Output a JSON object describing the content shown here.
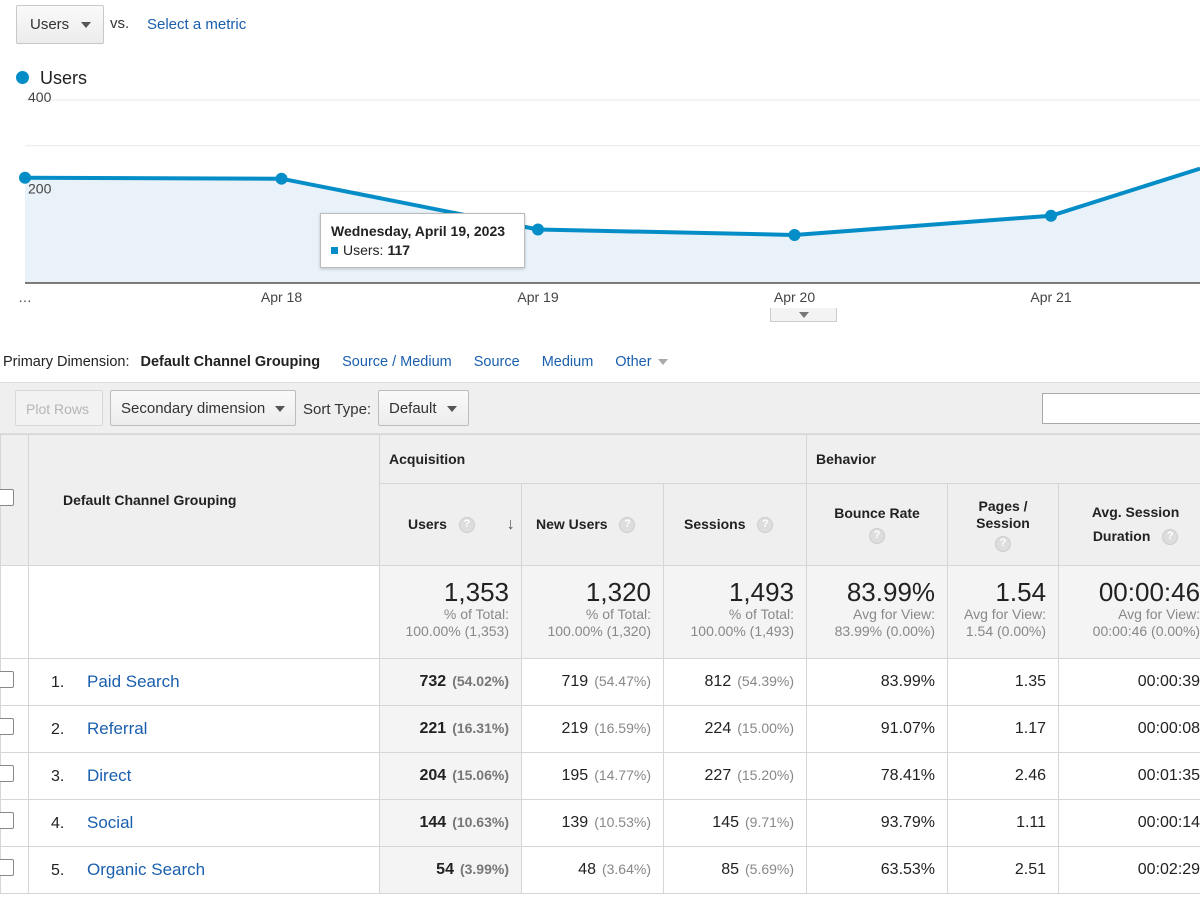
{
  "header": {
    "metric_select": "Users",
    "vs_label": "vs.",
    "select_metric_link": "Select a metric"
  },
  "chart": {
    "legend_label": "Users",
    "tooltip": {
      "date": "Wednesday, April 19, 2023",
      "label": "Users:",
      "value": "117"
    }
  },
  "chart_data": {
    "type": "area",
    "series": [
      {
        "name": "Users",
        "values": [
          230,
          228,
          117,
          105,
          147,
          250
        ]
      }
    ],
    "x": [
      "…",
      "Apr 18",
      "Apr 19",
      "Apr 20",
      "Apr 21",
      ""
    ],
    "x_tick_labels": [
      "…",
      "Apr 18",
      "Apr 19",
      "Apr 20",
      "Apr 21"
    ],
    "y_tick_labels": [
      "400",
      "200"
    ],
    "ylim": [
      0,
      400
    ],
    "grid": true,
    "colors": {
      "line": "#058dc7",
      "fill": "#e9f1f9",
      "grid": "#e8e8e8"
    }
  },
  "primary_dimension": {
    "label": "Primary Dimension:",
    "active": "Default Channel Grouping",
    "links": [
      "Source / Medium",
      "Source",
      "Medium"
    ],
    "other": "Other"
  },
  "toolbar": {
    "plot_rows": "Plot Rows",
    "secondary_dimension": "Secondary dimension",
    "sort_type_label": "Sort Type:",
    "sort_type_value": "Default"
  },
  "table": {
    "dimension_header": "Default Channel Grouping",
    "group_acquisition": "Acquisition",
    "group_behavior": "Behavior",
    "columns": {
      "users": "Users",
      "new_users": "New Users",
      "sessions": "Sessions",
      "bounce_rate": "Bounce Rate",
      "pages_session_1": "Pages /",
      "pages_session_2": "Session",
      "avg_session_1": "Avg. Session",
      "avg_session_2": "Duration"
    },
    "help_glyph": "?",
    "sort_glyph": "↓",
    "totals": {
      "users": {
        "value": "1,353",
        "line1": "% of Total:",
        "line2": "100.00% (1,353)"
      },
      "new_users": {
        "value": "1,320",
        "line1": "% of Total:",
        "line2": "100.00% (1,320)"
      },
      "sessions": {
        "value": "1,493",
        "line1": "% of Total:",
        "line2": "100.00% (1,493)"
      },
      "bounce_rate": {
        "value": "83.99%",
        "line1": "Avg for View:",
        "line2": "83.99% (0.00%)"
      },
      "pages_session": {
        "value": "1.54",
        "line1": "Avg for View:",
        "line2": "1.54 (0.00%)"
      },
      "avg_duration": {
        "value": "00:00:46",
        "line1": "Avg for View:",
        "line2": "00:00:46 (0.00%)"
      }
    },
    "rows": [
      {
        "rank": "1.",
        "name": "Paid Search",
        "users": "732",
        "users_pct": "(54.02%)",
        "new_users": "719",
        "new_users_pct": "(54.47%)",
        "sessions": "812",
        "sessions_pct": "(54.39%)",
        "bounce_rate": "83.99%",
        "pages_session": "1.35",
        "avg_duration": "00:00:39"
      },
      {
        "rank": "2.",
        "name": "Referral",
        "users": "221",
        "users_pct": "(16.31%)",
        "new_users": "219",
        "new_users_pct": "(16.59%)",
        "sessions": "224",
        "sessions_pct": "(15.00%)",
        "bounce_rate": "91.07%",
        "pages_session": "1.17",
        "avg_duration": "00:00:08"
      },
      {
        "rank": "3.",
        "name": "Direct",
        "users": "204",
        "users_pct": "(15.06%)",
        "new_users": "195",
        "new_users_pct": "(14.77%)",
        "sessions": "227",
        "sessions_pct": "(15.20%)",
        "bounce_rate": "78.41%",
        "pages_session": "2.46",
        "avg_duration": "00:01:35"
      },
      {
        "rank": "4.",
        "name": "Social",
        "users": "144",
        "users_pct": "(10.63%)",
        "new_users": "139",
        "new_users_pct": "(10.53%)",
        "sessions": "145",
        "sessions_pct": "(9.71%)",
        "bounce_rate": "93.79%",
        "pages_session": "1.11",
        "avg_duration": "00:00:14"
      },
      {
        "rank": "5.",
        "name": "Organic Search",
        "users": "54",
        "users_pct": "(3.99%)",
        "new_users": "48",
        "new_users_pct": "(3.64%)",
        "sessions": "85",
        "sessions_pct": "(5.69%)",
        "bounce_rate": "63.53%",
        "pages_session": "2.51",
        "avg_duration": "00:02:29"
      }
    ]
  }
}
